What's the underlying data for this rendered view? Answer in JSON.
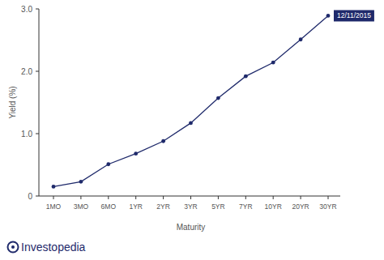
{
  "chart_data": {
    "type": "line",
    "x_label": "Maturity",
    "y_label": "Yield (%)",
    "annotation": "12/11/2015",
    "logo_text": "Investopedia",
    "categories": [
      "1MO",
      "3MO",
      "6MO",
      "1YR",
      "2YR",
      "3YR",
      "5YR",
      "7YR",
      "10YR",
      "20YR",
      "30YR"
    ],
    "values": [
      0.15,
      0.23,
      0.51,
      0.68,
      0.88,
      1.17,
      1.57,
      1.92,
      2.14,
      2.51,
      2.89
    ],
    "color": "#1f2a6b",
    "marker": "circle",
    "ylim": [
      0,
      3
    ],
    "yticks": [
      0,
      {
        "value": 1,
        "label": "1.0"
      },
      {
        "value": 2,
        "label": "2.0"
      },
      {
        "value": 3,
        "label": "3.0"
      }
    ],
    "grid": false
  }
}
